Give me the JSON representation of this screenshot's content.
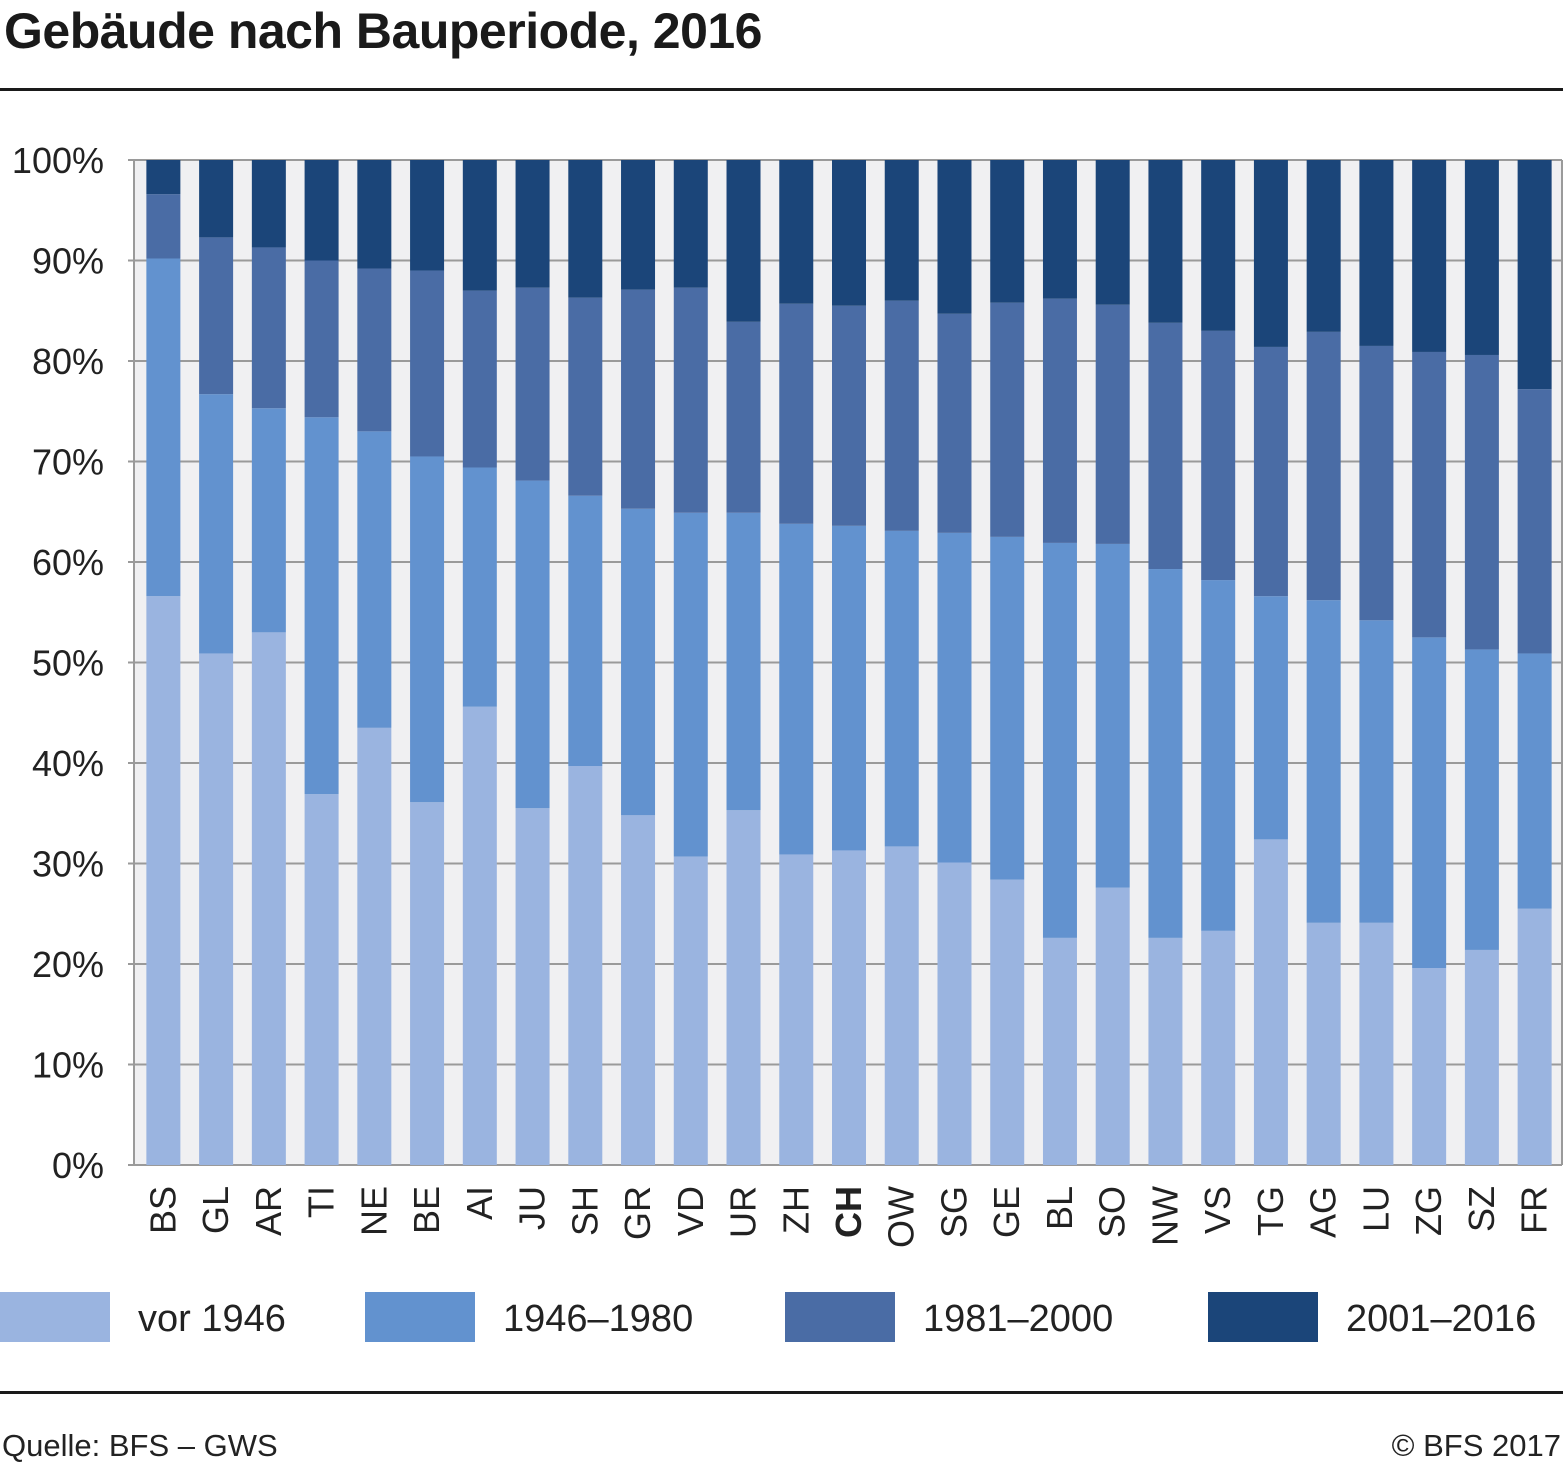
{
  "title": "Gebäude nach Bauperiode, 2016",
  "source": "Quelle: BFS – GWS",
  "copyright": "© BFS 2017",
  "colors": {
    "plot_background": "#f0f0f2",
    "grid": "#9a9a9a",
    "vor_1946": "#9ab4e0",
    "1946_1980": "#6292cf",
    "1981_2000": "#4a6ca5",
    "2001_2016": "#1b4579"
  },
  "chart_data": {
    "type": "bar",
    "stacked": true,
    "title": "Gebäude nach Bauperiode, 2016",
    "xlabel": "",
    "ylabel": "",
    "ylim": [
      0,
      100
    ],
    "yticks": [
      "0%",
      "10%",
      "20%",
      "30%",
      "40%",
      "50%",
      "60%",
      "70%",
      "80%",
      "90%",
      "100%"
    ],
    "grid": true,
    "legend_position": "bottom",
    "categories": [
      "BS",
      "GL",
      "AR",
      "TI",
      "NE",
      "BE",
      "AI",
      "JU",
      "SH",
      "GR",
      "VD",
      "UR",
      "ZH",
      "CH",
      "OW",
      "SG",
      "GE",
      "BL",
      "SO",
      "NW",
      "VS",
      "TG",
      "AG",
      "LU",
      "ZG",
      "SZ",
      "FR"
    ],
    "highlight_category": "CH",
    "series": [
      {
        "name": "vor 1946",
        "color": "#9ab4e0",
        "values": [
          56.6,
          50.9,
          53.0,
          36.9,
          43.5,
          36.1,
          45.6,
          35.5,
          39.7,
          34.8,
          30.7,
          35.3,
          30.9,
          31.3,
          31.7,
          30.1,
          28.4,
          22.6,
          27.6,
          22.6,
          23.3,
          32.4,
          24.1,
          24.1,
          19.6,
          21.4,
          25.5
        ]
      },
      {
        "name": "1946–1980",
        "color": "#6292cf",
        "values": [
          33.6,
          25.8,
          22.3,
          37.5,
          29.5,
          34.4,
          23.8,
          32.6,
          26.9,
          30.5,
          34.2,
          29.6,
          32.9,
          32.3,
          31.4,
          32.8,
          34.1,
          39.3,
          34.2,
          36.7,
          34.9,
          24.2,
          32.1,
          30.1,
          32.9,
          29.9,
          25.4
        ]
      },
      {
        "name": "1981–2000",
        "color": "#4a6ca5",
        "values": [
          6.4,
          15.6,
          16.0,
          15.6,
          16.2,
          18.5,
          17.6,
          19.2,
          19.7,
          21.8,
          22.4,
          19.0,
          21.9,
          21.9,
          22.9,
          21.8,
          23.3,
          24.3,
          23.8,
          24.5,
          24.8,
          24.8,
          26.7,
          27.3,
          28.4,
          29.3,
          26.3
        ]
      },
      {
        "name": "2001–2016",
        "color": "#1b4579",
        "values": [
          3.4,
          7.7,
          8.7,
          10.0,
          10.8,
          11.0,
          13.0,
          12.7,
          13.7,
          12.9,
          12.7,
          16.1,
          14.3,
          14.5,
          14.0,
          15.3,
          14.2,
          13.8,
          14.4,
          16.2,
          17.0,
          18.6,
          17.1,
          18.5,
          19.1,
          19.4,
          22.8
        ]
      }
    ]
  }
}
